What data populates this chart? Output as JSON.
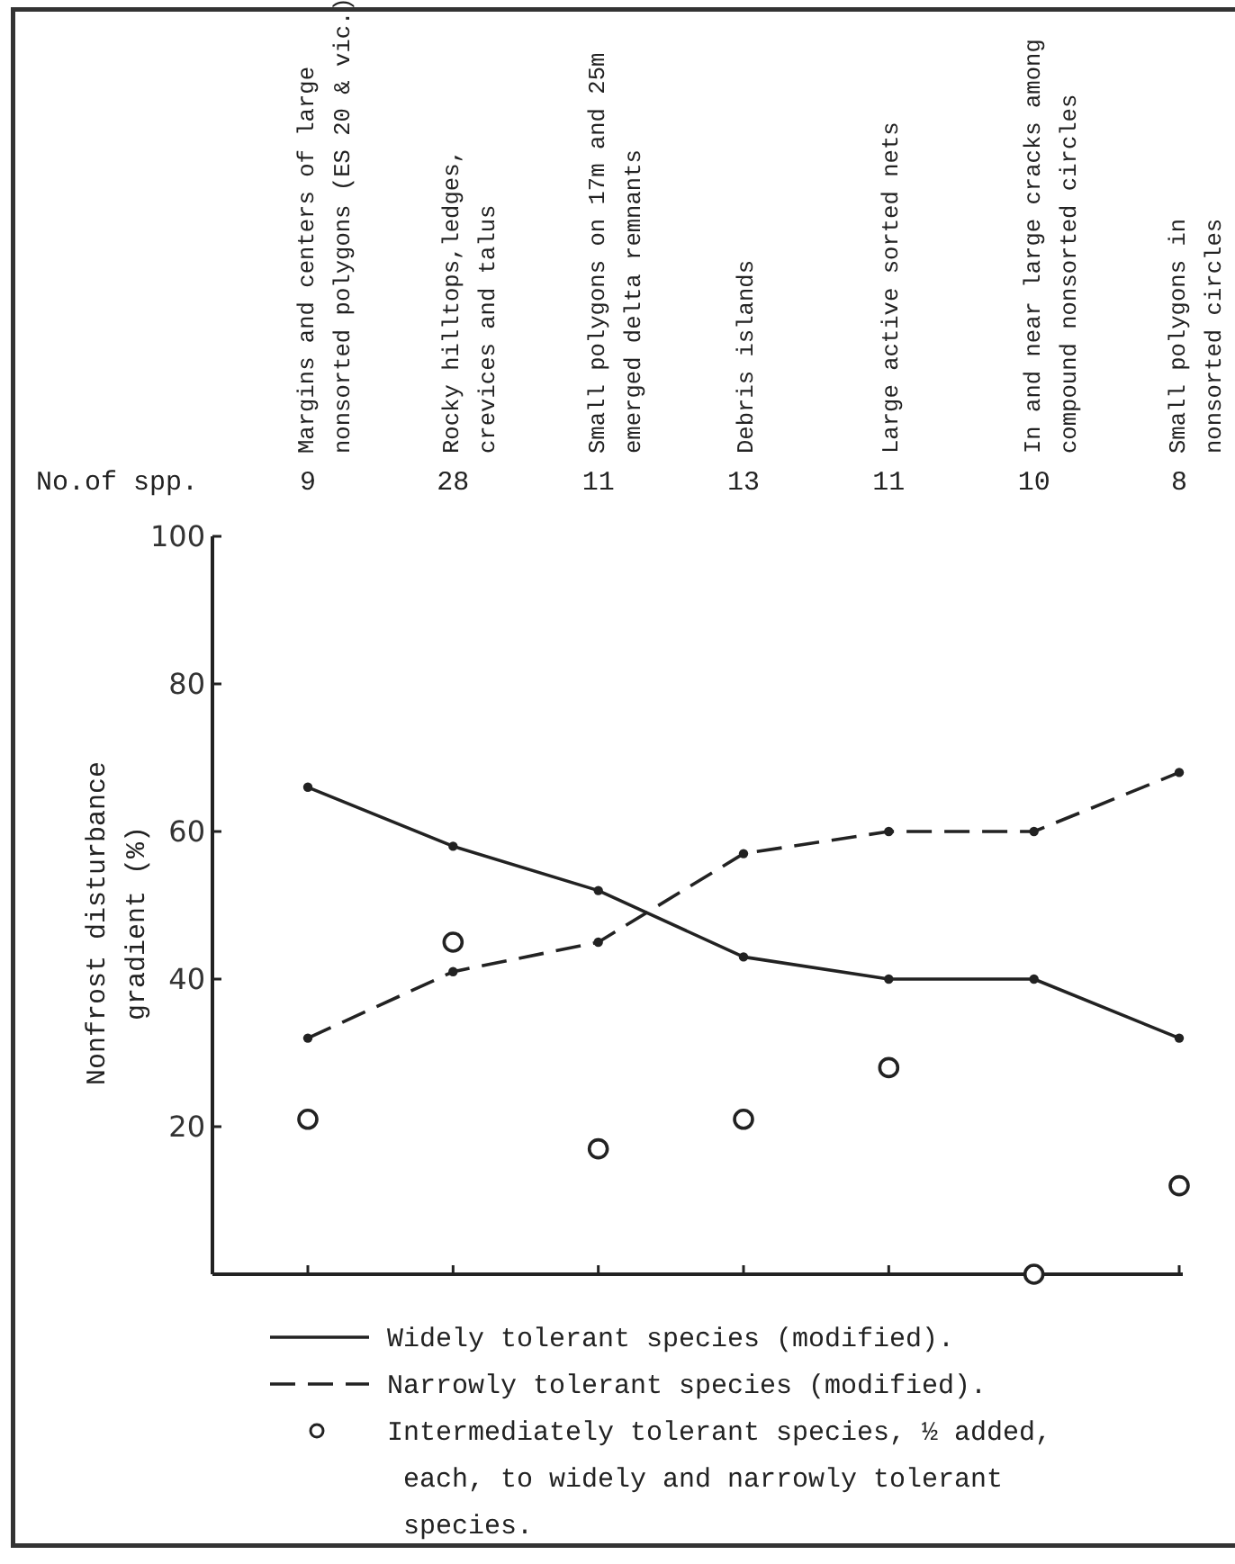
{
  "chart_data": {
    "type": "line",
    "ylabel": "Nonfrost disturbance\ngradient (%)",
    "categories": [
      "Margins and centers of large\nnonsorted polygons (ES 20 & vic.)",
      "Rocky hilltops,ledges,\ncrevices and talus",
      "Small polygons on 17m and 25m\nemerged delta remnants",
      "Debris islands",
      "Large active sorted nets",
      "In and near large cracks among\ncompound nonsorted circles",
      "Small polygons in\nnonsorted circles"
    ],
    "series": [
      {
        "name": "Widely tolerant species (modified).",
        "color": "#222222",
        "line_style": "solid",
        "marker": "circle",
        "values": [
          66,
          58,
          52,
          43,
          40,
          40,
          32
        ]
      },
      {
        "name": "Narrowly tolerant species (modified).",
        "color": "#222222",
        "line_style": "dashed",
        "marker": "circle",
        "values": [
          32,
          41,
          45,
          57,
          60,
          60,
          68
        ]
      },
      {
        "name": "Intermediately tolerant species, ½ added, each, to widely and narrowly tolerant species.",
        "type": "scatter",
        "color": "#222222",
        "marker": "circle",
        "values": [
          21,
          45,
          17,
          21,
          28,
          0,
          12
        ]
      }
    ],
    "ylim": [
      0,
      100
    ],
    "yticks": [
      {
        "value": 0,
        "label": null
      },
      20,
      40,
      60,
      80,
      100
    ],
    "grid": false,
    "legend": "bottom",
    "annotations": [
      "No.of spp.",
      "9",
      "28",
      "11",
      "13",
      "11",
      "10",
      "8"
    ]
  }
}
